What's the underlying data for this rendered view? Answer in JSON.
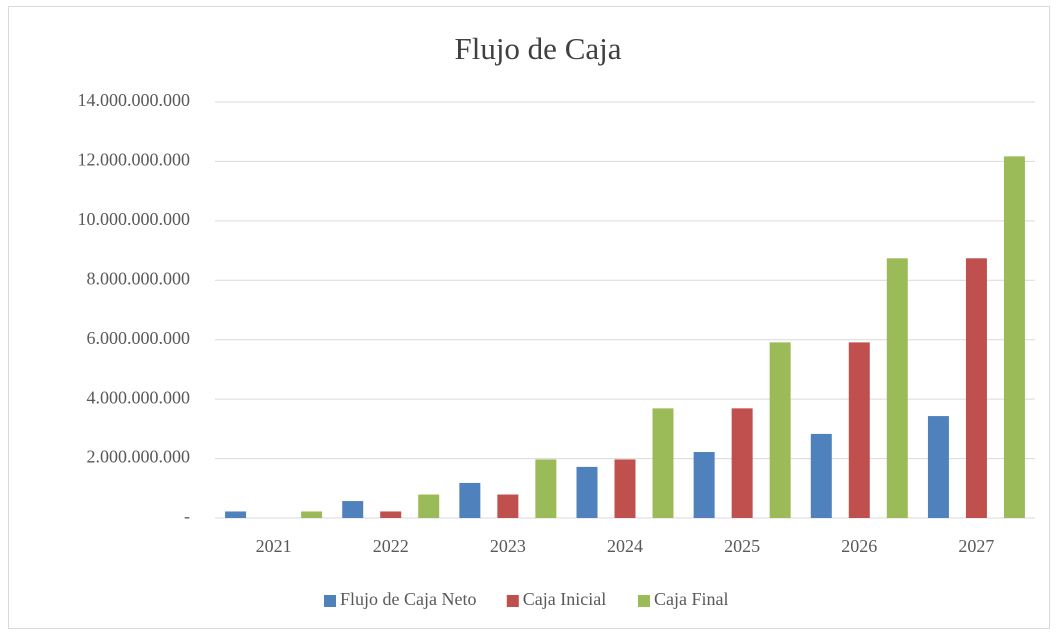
{
  "chart_data": {
    "type": "bar",
    "title": "Flujo de Caja",
    "categories": [
      "2021",
      "2022",
      "2023",
      "2024",
      "2025",
      "2026",
      "2027"
    ],
    "series": [
      {
        "name": "Flujo de Caja Neto",
        "color": "#4f81bd",
        "values": [
          220000000,
          570000000,
          1180000000,
          1720000000,
          2220000000,
          2830000000,
          3430000000
        ]
      },
      {
        "name": "Caja Inicial",
        "color": "#c0504d",
        "values": [
          0,
          220000000,
          790000000,
          1970000000,
          3690000000,
          5910000000,
          8740000000
        ]
      },
      {
        "name": "Caja Final",
        "color": "#9bbb59",
        "values": [
          220000000,
          790000000,
          1970000000,
          3690000000,
          5910000000,
          8740000000,
          12170000000
        ]
      }
    ],
    "ylim": [
      0,
      14000000000
    ],
    "yticks": [
      {
        "value": 0,
        "label": "-"
      },
      {
        "value": 2000000000,
        "label": "2.000.000.000"
      },
      {
        "value": 4000000000,
        "label": "4.000.000.000"
      },
      {
        "value": 6000000000,
        "label": "6.000.000.000"
      },
      {
        "value": 8000000000,
        "label": "8.000.000.000"
      },
      {
        "value": 10000000000,
        "label": "10.000.000.000"
      },
      {
        "value": 12000000000,
        "label": "12.000.000.000"
      },
      {
        "value": 14000000000,
        "label": "14.000.000.000"
      }
    ],
    "grid": true,
    "legend": "bottom"
  }
}
